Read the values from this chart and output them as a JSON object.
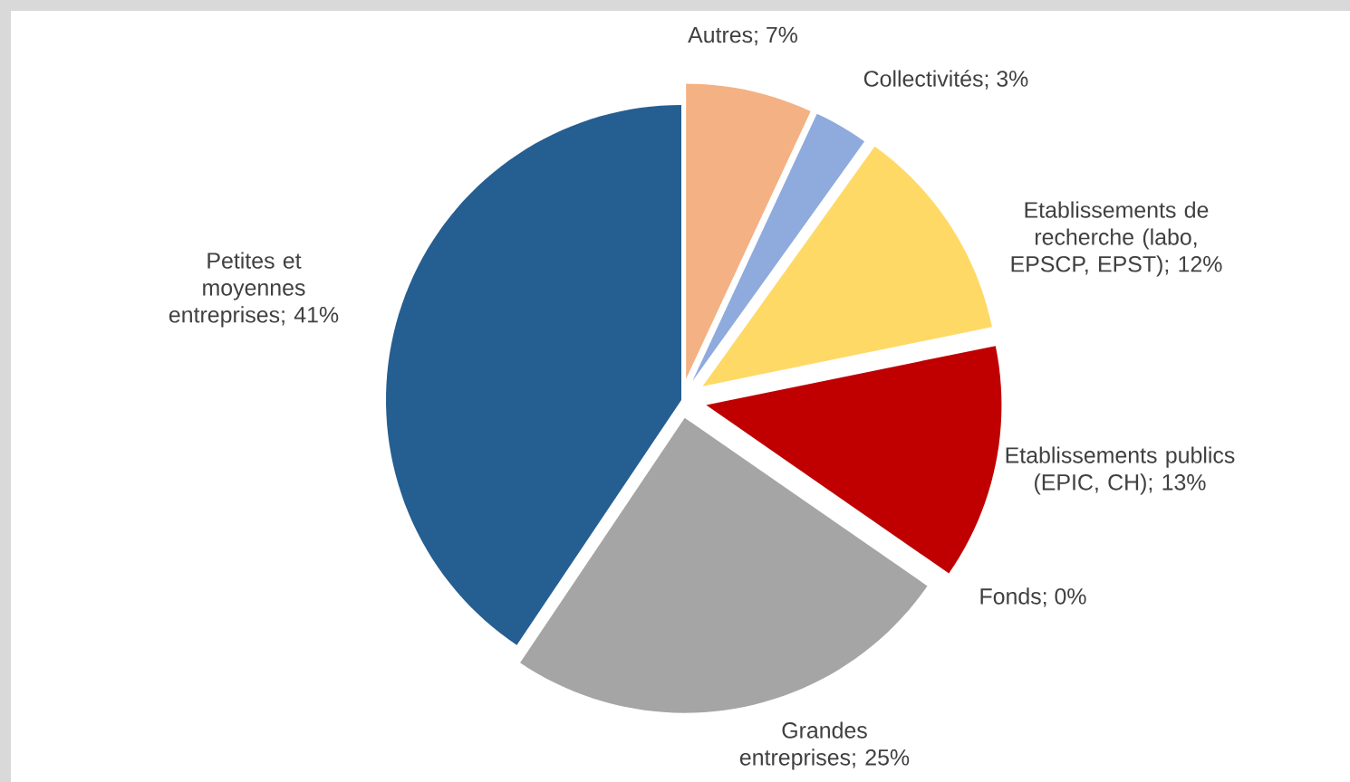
{
  "chart_data": {
    "type": "pie",
    "categories": [
      "Autres; 7%",
      "Collectivités; 3%",
      "Etablissements de recherche (labo, EPSCP, EPST); 12%",
      "Etablissements publics (EPIC, CH); 13%",
      "Fonds; 0%",
      "Grandes entreprises; 25%",
      "Petites et moyennes entreprises; 41%"
    ],
    "values": [
      7,
      3,
      12,
      13,
      0,
      25,
      41
    ],
    "colors": [
      "#f4b183",
      "#8faadc",
      "#ffd966",
      "#c00000",
      "#70ad47",
      "#a5a5a5",
      "#255e91"
    ]
  }
}
